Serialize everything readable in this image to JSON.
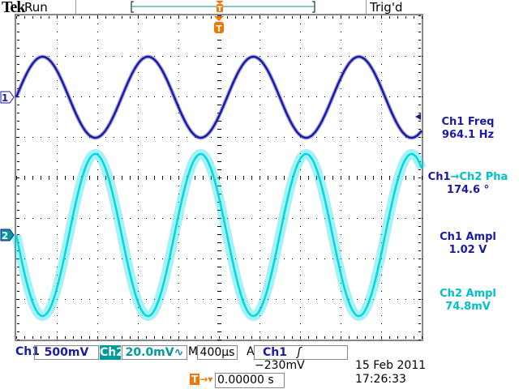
{
  "header": {
    "brand": "Tek",
    "acq_state": "Run",
    "trigger_status": "Trig'd"
  },
  "colors": {
    "ch1": "#1a1aa6",
    "ch2": "#00d8e0",
    "trigger": "#f07800",
    "grid": "#000000"
  },
  "markers": {
    "ch1": "1",
    "ch2": "2",
    "trigger": "T"
  },
  "measurements": [
    {
      "label": "Ch1 Freq",
      "value": "964.1 Hz",
      "channel": "ch1"
    },
    {
      "label_a": "Ch1",
      "arrow": "→",
      "label_b": "Ch2 Pha",
      "value": "174.6 °"
    },
    {
      "label": "Ch1 Ampl",
      "value": "1.02 V",
      "channel": "ch1"
    },
    {
      "label": "Ch2 Ampl",
      "value": "74.8mV",
      "channel": "ch2"
    }
  ],
  "status_bar": {
    "ch1_label": "Ch1",
    "ch1_scale": "500mV",
    "ch2_label": "Ch2",
    "ch2_scale": "20.0mV∿",
    "timebase_label": "M",
    "timebase": "400µs",
    "trigger_mode": "A",
    "trigger_source": "Ch1",
    "trigger_slope": "ʃ",
    "trigger_level": "−230mV"
  },
  "trigger_position": {
    "value": "0.00000 s"
  },
  "datetime": {
    "date": "15 Feb  2011",
    "time": "17:26:33"
  }
}
